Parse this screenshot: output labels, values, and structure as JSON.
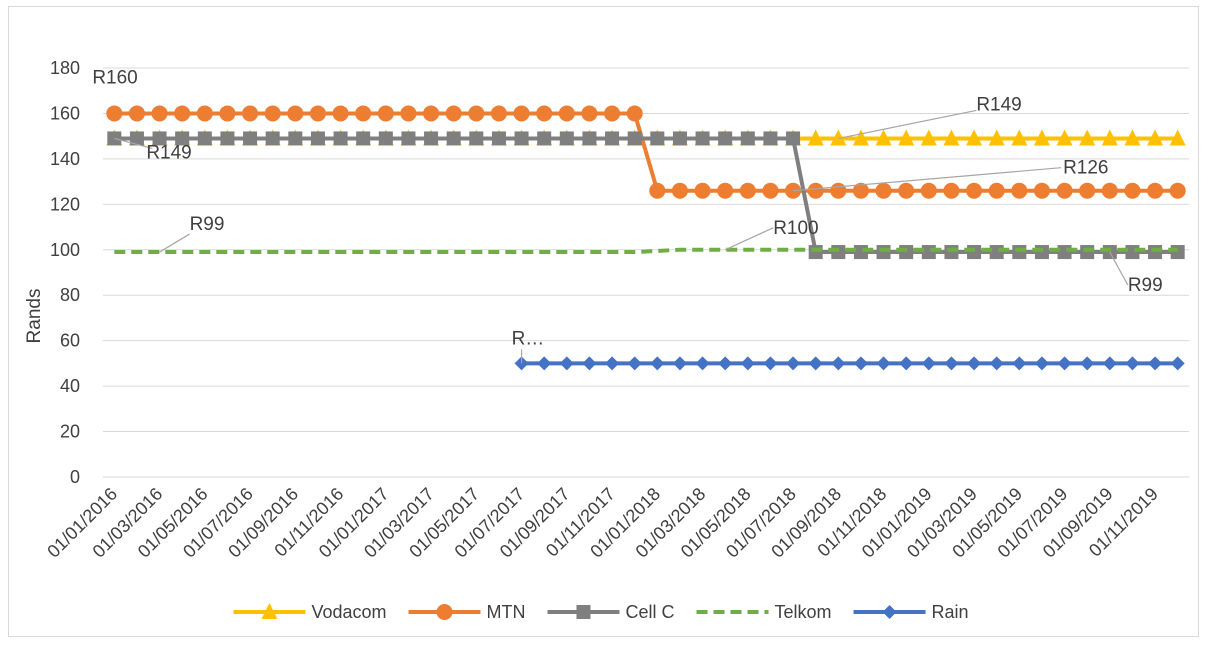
{
  "chart_data": {
    "type": "line",
    "title": "",
    "xlabel": "",
    "ylabel": "Rands",
    "ylim": [
      0,
      180
    ],
    "y_ticks": [
      "0",
      "20",
      "40",
      "60",
      "80",
      "100",
      "120",
      "140",
      "160",
      "180"
    ],
    "grid": "horizontal",
    "legend_position": "bottom",
    "x": [
      "01/01/2016",
      "01/02/2016",
      "01/03/2016",
      "01/04/2016",
      "01/05/2016",
      "01/06/2016",
      "01/07/2016",
      "01/08/2016",
      "01/09/2016",
      "01/10/2016",
      "01/11/2016",
      "01/12/2016",
      "01/01/2017",
      "01/02/2017",
      "01/03/2017",
      "01/04/2017",
      "01/05/2017",
      "01/06/2017",
      "01/07/2017",
      "01/08/2017",
      "01/09/2017",
      "01/10/2017",
      "01/11/2017",
      "01/12/2017",
      "01/01/2018",
      "01/02/2018",
      "01/03/2018",
      "01/04/2018",
      "01/05/2018",
      "01/06/2018",
      "01/07/2018",
      "01/08/2018",
      "01/09/2018",
      "01/10/2018",
      "01/11/2018",
      "01/12/2018",
      "01/01/2019",
      "01/02/2019",
      "01/03/2019",
      "01/04/2019",
      "01/05/2019",
      "01/06/2019",
      "01/07/2019",
      "01/08/2019",
      "01/09/2019",
      "01/10/2019",
      "01/11/2019",
      "01/12/2019"
    ],
    "x_tick_labels": [
      "01/01/2016",
      "01/03/2016",
      "01/05/2016",
      "01/07/2016",
      "01/09/2016",
      "01/11/2016",
      "01/01/2017",
      "01/03/2017",
      "01/05/2017",
      "01/07/2017",
      "01/09/2017",
      "01/11/2017",
      "01/01/2018",
      "01/03/2018",
      "01/05/2018",
      "01/07/2018",
      "01/09/2018",
      "01/11/2018",
      "01/01/2019",
      "01/03/2019",
      "01/05/2019",
      "01/07/2019",
      "01/09/2019",
      "01/11/2019"
    ],
    "series": [
      {
        "name": "Vodacom",
        "color": "#FFC000",
        "marker": "triangle",
        "dash": "solid",
        "values": [
          149,
          149,
          149,
          149,
          149,
          149,
          149,
          149,
          149,
          149,
          149,
          149,
          149,
          149,
          149,
          149,
          149,
          149,
          149,
          149,
          149,
          149,
          149,
          149,
          149,
          149,
          149,
          149,
          149,
          149,
          149,
          149,
          149,
          149,
          149,
          149,
          149,
          149,
          149,
          149,
          149,
          149,
          149,
          149,
          149,
          149,
          149,
          149
        ]
      },
      {
        "name": "MTN",
        "color": "#ED7D31",
        "marker": "circle",
        "dash": "solid",
        "values": [
          160,
          160,
          160,
          160,
          160,
          160,
          160,
          160,
          160,
          160,
          160,
          160,
          160,
          160,
          160,
          160,
          160,
          160,
          160,
          160,
          160,
          160,
          160,
          160,
          126,
          126,
          126,
          126,
          126,
          126,
          126,
          126,
          126,
          126,
          126,
          126,
          126,
          126,
          126,
          126,
          126,
          126,
          126,
          126,
          126,
          126,
          126,
          126
        ]
      },
      {
        "name": "Cell C",
        "color": "#7F7F7F",
        "marker": "square",
        "dash": "solid",
        "values": [
          149,
          149,
          149,
          149,
          149,
          149,
          149,
          149,
          149,
          149,
          149,
          149,
          149,
          149,
          149,
          149,
          149,
          149,
          149,
          149,
          149,
          149,
          149,
          149,
          149,
          149,
          149,
          149,
          149,
          149,
          149,
          99,
          99,
          99,
          99,
          99,
          99,
          99,
          99,
          99,
          99,
          99,
          99,
          99,
          99,
          99,
          99,
          99
        ]
      },
      {
        "name": "Telkom",
        "color": "#70AD47",
        "marker": "none",
        "dash": "dashed",
        "values": [
          99,
          99,
          99,
          99,
          99,
          99,
          99,
          99,
          99,
          99,
          99,
          99,
          99,
          99,
          99,
          99,
          99,
          99,
          99,
          99,
          99,
          99,
          99,
          99,
          99.5,
          100,
          100,
          100,
          100,
          100,
          100,
          100,
          100,
          100,
          100,
          100,
          100,
          100,
          100,
          100,
          100,
          100,
          100,
          100,
          100,
          100,
          100,
          100
        ]
      },
      {
        "name": "Rain",
        "color": "#4472C4",
        "marker": "diamond",
        "dash": "solid",
        "values": [
          null,
          null,
          null,
          null,
          null,
          null,
          null,
          null,
          null,
          null,
          null,
          null,
          null,
          null,
          null,
          null,
          null,
          null,
          50,
          50,
          50,
          50,
          50,
          50,
          50,
          50,
          50,
          50,
          50,
          50,
          50,
          50,
          50,
          50,
          50,
          50,
          50,
          50,
          50,
          50,
          50,
          50,
          50,
          50,
          50,
          50,
          50,
          50
        ]
      }
    ],
    "data_labels": [
      {
        "text": "R160",
        "series": "MTN",
        "x_index": 0,
        "value": 160
      },
      {
        "text": "R149",
        "series": "Cell C",
        "x_index": 0,
        "value": 149
      },
      {
        "text": "R149",
        "series": "Vodacom",
        "x_index": 32,
        "value": 149
      },
      {
        "text": "R126",
        "series": "MTN",
        "x_index": 30,
        "value": 126
      },
      {
        "text": "R99",
        "series": "Telkom",
        "x_index": 2,
        "value": 99
      },
      {
        "text": "R100",
        "series": "Telkom",
        "x_index": 27,
        "value": 100
      },
      {
        "text": "R99",
        "series": "Cell C",
        "x_index": 44,
        "value": 99
      },
      {
        "text": "R…",
        "series": "Rain",
        "x_index": 18,
        "value": 50
      }
    ]
  }
}
